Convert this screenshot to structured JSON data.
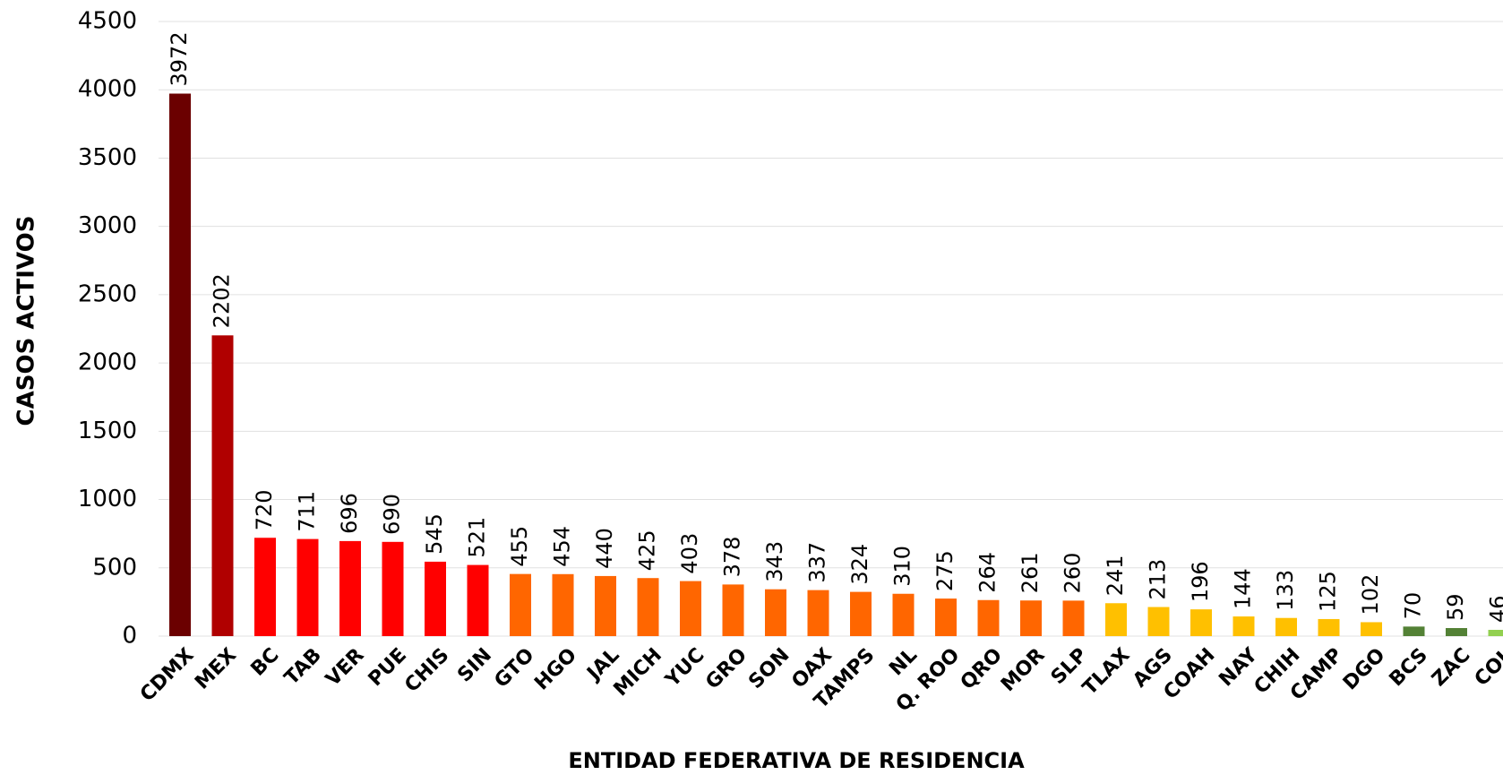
{
  "chart_data": {
    "type": "bar",
    "x_label": "ENTIDAD FEDERATIVA DE  RESIDENCIA",
    "y_label": "CASOS ACTIVOS",
    "categories": [
      "CDMX",
      "MEX",
      "BC",
      "TAB",
      "VER",
      "PUE",
      "CHIS",
      "SIN",
      "GTO",
      "HGO",
      "JAL",
      "MICH",
      "YUC",
      "GRO",
      "SON",
      "OAX",
      "TAMPS",
      "NL",
      "Q. ROO",
      "QRO",
      "MOR",
      "SLP",
      "TLAX",
      "AGS",
      "COAH",
      "NAY",
      "CHIH",
      "CAMP",
      "DGO",
      "BCS",
      "ZAC",
      "COL"
    ],
    "values": [
      3972,
      2202,
      720,
      711,
      696,
      690,
      545,
      521,
      455,
      454,
      440,
      425,
      403,
      378,
      343,
      337,
      324,
      310,
      275,
      264,
      261,
      260,
      241,
      213,
      196,
      144,
      133,
      125,
      102,
      70,
      59,
      46
    ],
    "colors": [
      "#6b0000",
      "#b00000",
      "#ff0000",
      "#ff0000",
      "#ff0000",
      "#ff0000",
      "#ff0000",
      "#ff0000",
      "#ff6600",
      "#ff6600",
      "#ff6600",
      "#ff6600",
      "#ff6600",
      "#ff6600",
      "#ff6600",
      "#ff6600",
      "#ff6600",
      "#ff6600",
      "#ff6600",
      "#ff6600",
      "#ff6600",
      "#ff6600",
      "#ffc000",
      "#ffc000",
      "#ffc000",
      "#ffc000",
      "#ffc000",
      "#ffc000",
      "#ffc000",
      "#538135",
      "#538135",
      "#92d050"
    ],
    "ylim": [
      0,
      4500
    ],
    "yticks": [
      0,
      500,
      1000,
      1500,
      2000,
      2500,
      3000,
      3500,
      4000,
      4500
    ],
    "grid": true
  }
}
